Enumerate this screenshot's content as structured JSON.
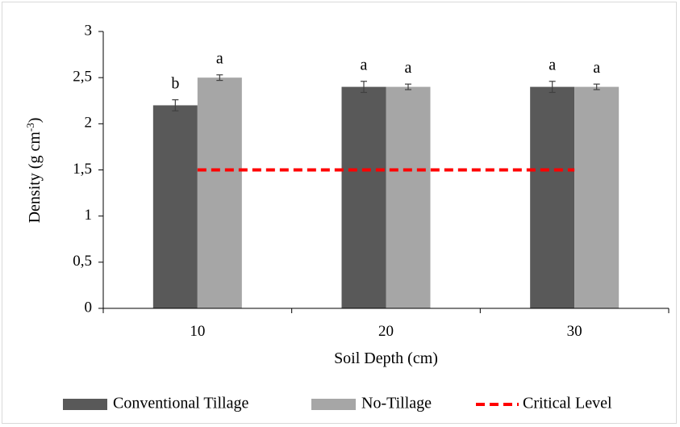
{
  "chart_data": {
    "type": "bar",
    "title": "",
    "xlabel": "Soil Depth (cm)",
    "ylabel_main": "Density (g cm",
    "ylabel_sup": "-3",
    "ylabel_close": ")",
    "ylim": [
      0,
      3
    ],
    "yticks": [
      {
        "value": 0,
        "label": "0"
      },
      {
        "value": 0.5,
        "label": "0,5"
      },
      {
        "value": 1,
        "label": "1"
      },
      {
        "value": 1.5,
        "label": "1,5"
      },
      {
        "value": 2,
        "label": "2"
      },
      {
        "value": 2.5,
        "label": "2,5"
      },
      {
        "value": 3,
        "label": "3"
      }
    ],
    "categories": [
      "10",
      "20",
      "30"
    ],
    "series": [
      {
        "name": "Conventional Tillage",
        "color": "#595959",
        "values": [
          2.2,
          2.4,
          2.4
        ],
        "errors": [
          0.06,
          0.06,
          0.06
        ],
        "labels": [
          "b",
          "a",
          "a"
        ]
      },
      {
        "name": "No-Tillage",
        "color": "#a6a6a6",
        "values": [
          2.5,
          2.4,
          2.4
        ],
        "errors": [
          0.03,
          0.03,
          0.03
        ],
        "labels": [
          "a",
          "a",
          "a"
        ]
      }
    ],
    "reference_line": {
      "name": "Critical Level",
      "value": 1.5,
      "color": "#ff0000",
      "style": "dashed"
    },
    "legend_position": "bottom",
    "grid": false
  }
}
